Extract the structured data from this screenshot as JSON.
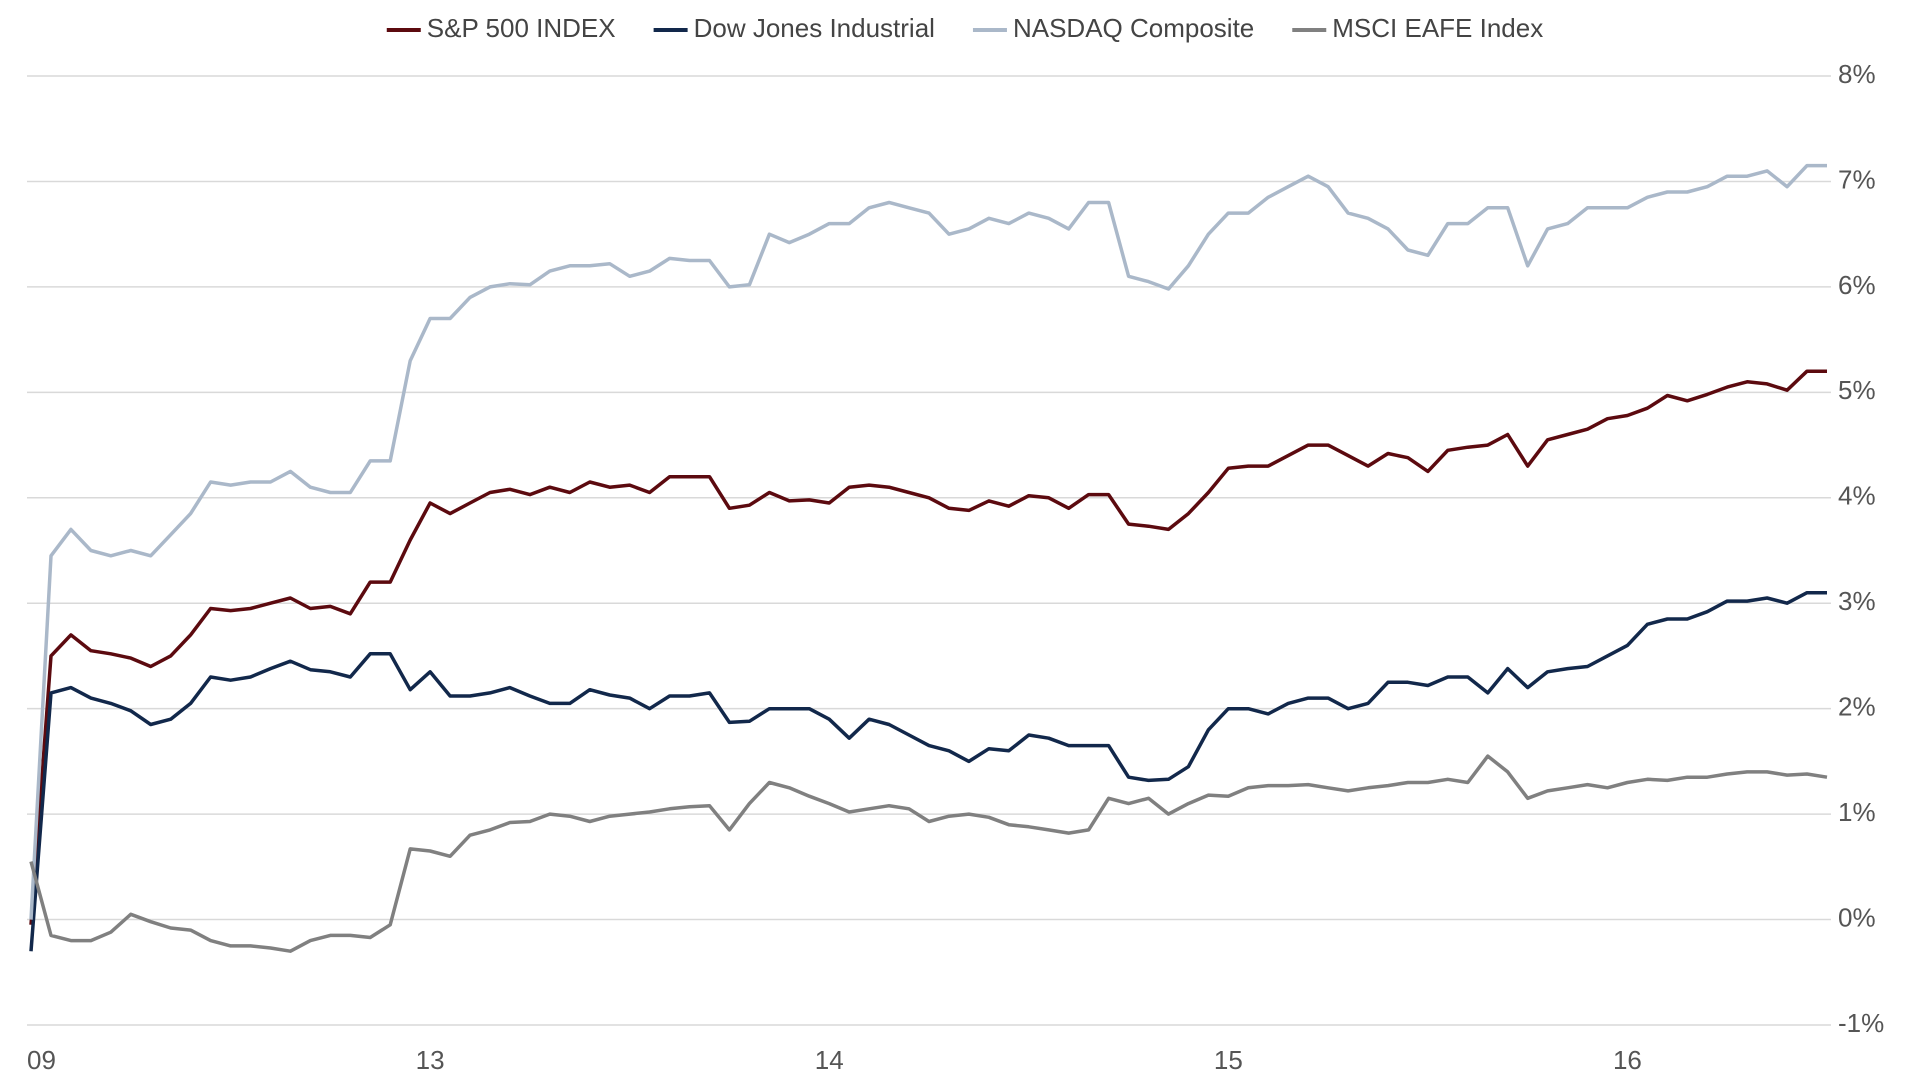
{
  "chart_data": {
    "type": "line",
    "legend": "top",
    "grid": true,
    "ylim": [
      -1,
      8
    ],
    "yticks": [
      {
        "value": -1,
        "label": "-1%"
      },
      {
        "value": 0,
        "label": "0%"
      },
      {
        "value": 1,
        "label": "1%"
      },
      {
        "value": 2,
        "label": "2%"
      },
      {
        "value": 3,
        "label": "3%"
      },
      {
        "value": 4,
        "label": "4%"
      },
      {
        "value": 5,
        "label": "5%"
      },
      {
        "value": 6,
        "label": "6%"
      },
      {
        "value": 7,
        "label": "7%"
      },
      {
        "value": 8,
        "label": "8%"
      }
    ],
    "categories": [
      "09",
      null,
      null,
      null,
      null,
      null,
      null,
      null,
      null,
      null,
      null,
      null,
      null,
      null,
      null,
      null,
      null,
      null,
      null,
      null,
      "13",
      null,
      null,
      null,
      null,
      null,
      null,
      null,
      null,
      null,
      null,
      null,
      null,
      null,
      null,
      null,
      null,
      null,
      null,
      null,
      "14",
      null,
      null,
      null,
      null,
      null,
      null,
      null,
      null,
      null,
      null,
      null,
      null,
      null,
      null,
      null,
      null,
      null,
      null,
      null,
      "15",
      null,
      null,
      null,
      null,
      null,
      null,
      null,
      null,
      null,
      null,
      null,
      null,
      null,
      null,
      null,
      null,
      null,
      null,
      null,
      "16",
      null,
      null,
      null,
      null,
      null,
      null,
      null,
      null,
      null,
      null
    ],
    "series": [
      {
        "name": "S&P 500 INDEX",
        "color": "#5c0a0f",
        "values": [
          -0.05,
          2.5,
          2.7,
          2.55,
          2.52,
          2.48,
          2.4,
          2.5,
          2.7,
          2.95,
          2.93,
          2.95,
          3.0,
          3.05,
          2.95,
          2.97,
          2.9,
          3.2,
          3.2,
          3.6,
          3.95,
          3.85,
          3.95,
          4.05,
          4.08,
          4.03,
          4.1,
          4.05,
          4.15,
          4.1,
          4.12,
          4.05,
          4.2,
          4.2,
          4.2,
          3.9,
          3.93,
          4.05,
          3.97,
          3.98,
          3.95,
          4.1,
          4.12,
          4.1,
          4.05,
          4.0,
          3.9,
          3.88,
          3.97,
          3.92,
          4.02,
          4.0,
          3.9,
          4.03,
          4.03,
          3.75,
          3.73,
          3.7,
          3.85,
          4.05,
          4.28,
          4.3,
          4.3,
          4.4,
          4.5,
          4.5,
          4.4,
          4.3,
          4.42,
          4.38,
          4.25,
          4.45,
          4.48,
          4.5,
          4.6,
          4.3,
          4.55,
          4.6,
          4.65,
          4.75,
          4.78,
          4.85,
          4.97,
          4.92,
          4.98,
          5.05,
          5.1,
          5.08,
          5.02,
          5.2,
          5.2
        ]
      },
      {
        "name": "Dow Jones Industrial",
        "color": "#12284b",
        "values": [
          -0.3,
          2.15,
          2.2,
          2.1,
          2.05,
          1.98,
          1.85,
          1.9,
          2.05,
          2.3,
          2.27,
          2.3,
          2.38,
          2.45,
          2.37,
          2.35,
          2.3,
          2.52,
          2.52,
          2.18,
          2.35,
          2.12,
          2.12,
          2.15,
          2.2,
          2.12,
          2.05,
          2.05,
          2.18,
          2.13,
          2.1,
          2.0,
          2.12,
          2.12,
          2.15,
          1.87,
          1.88,
          2.0,
          2.0,
          2.0,
          1.9,
          1.72,
          1.9,
          1.85,
          1.75,
          1.65,
          1.6,
          1.5,
          1.62,
          1.6,
          1.75,
          1.72,
          1.65,
          1.65,
          1.65,
          1.35,
          1.32,
          1.33,
          1.45,
          1.8,
          2.0,
          2.0,
          1.95,
          2.05,
          2.1,
          2.1,
          2.0,
          2.05,
          2.25,
          2.25,
          2.22,
          2.3,
          2.3,
          2.15,
          2.38,
          2.2,
          2.35,
          2.38,
          2.4,
          2.5,
          2.6,
          2.8,
          2.85,
          2.85,
          2.92,
          3.02,
          3.02,
          3.05,
          3.0,
          3.1,
          3.1
        ]
      },
      {
        "name": "NASDAQ Composite",
        "color": "#aab8c9",
        "values": [
          0.0,
          3.45,
          3.7,
          3.5,
          3.45,
          3.5,
          3.45,
          3.65,
          3.85,
          4.15,
          4.12,
          4.15,
          4.15,
          4.25,
          4.1,
          4.05,
          4.05,
          4.35,
          4.35,
          5.3,
          5.7,
          5.7,
          5.9,
          6.0,
          6.03,
          6.02,
          6.15,
          6.2,
          6.2,
          6.22,
          6.1,
          6.15,
          6.27,
          6.25,
          6.25,
          6.0,
          6.02,
          6.5,
          6.42,
          6.5,
          6.6,
          6.6,
          6.75,
          6.8,
          6.75,
          6.7,
          6.5,
          6.55,
          6.65,
          6.6,
          6.7,
          6.65,
          6.55,
          6.8,
          6.8,
          6.1,
          6.05,
          5.98,
          6.2,
          6.5,
          6.7,
          6.7,
          6.85,
          6.95,
          7.05,
          6.95,
          6.7,
          6.65,
          6.55,
          6.35,
          6.3,
          6.6,
          6.6,
          6.75,
          6.75,
          6.2,
          6.55,
          6.6,
          6.75,
          6.75,
          6.75,
          6.85,
          6.9,
          6.9,
          6.95,
          7.05,
          7.05,
          7.1,
          6.95,
          7.15,
          7.15
        ]
      },
      {
        "name": "MSCI EAFE Index",
        "color": "#808080",
        "values": [
          0.55,
          -0.15,
          -0.2,
          -0.2,
          -0.12,
          0.05,
          -0.02,
          -0.08,
          -0.1,
          -0.2,
          -0.25,
          -0.25,
          -0.27,
          -0.3,
          -0.2,
          -0.15,
          -0.15,
          -0.17,
          -0.05,
          0.67,
          0.65,
          0.6,
          0.8,
          0.85,
          0.92,
          0.93,
          1.0,
          0.98,
          0.93,
          0.98,
          1.0,
          1.02,
          1.05,
          1.07,
          1.08,
          0.85,
          1.1,
          1.3,
          1.25,
          1.17,
          1.1,
          1.02,
          1.05,
          1.08,
          1.05,
          0.93,
          0.98,
          1.0,
          0.97,
          0.9,
          0.88,
          0.85,
          0.82,
          0.85,
          1.15,
          1.1,
          1.15,
          1.0,
          1.1,
          1.18,
          1.17,
          1.25,
          1.27,
          1.27,
          1.28,
          1.25,
          1.22,
          1.25,
          1.27,
          1.3,
          1.3,
          1.33,
          1.3,
          1.55,
          1.4,
          1.15,
          1.22,
          1.25,
          1.28,
          1.25,
          1.3,
          1.33,
          1.32,
          1.35,
          1.35,
          1.38,
          1.4,
          1.4,
          1.37,
          1.38,
          1.35
        ]
      }
    ]
  }
}
